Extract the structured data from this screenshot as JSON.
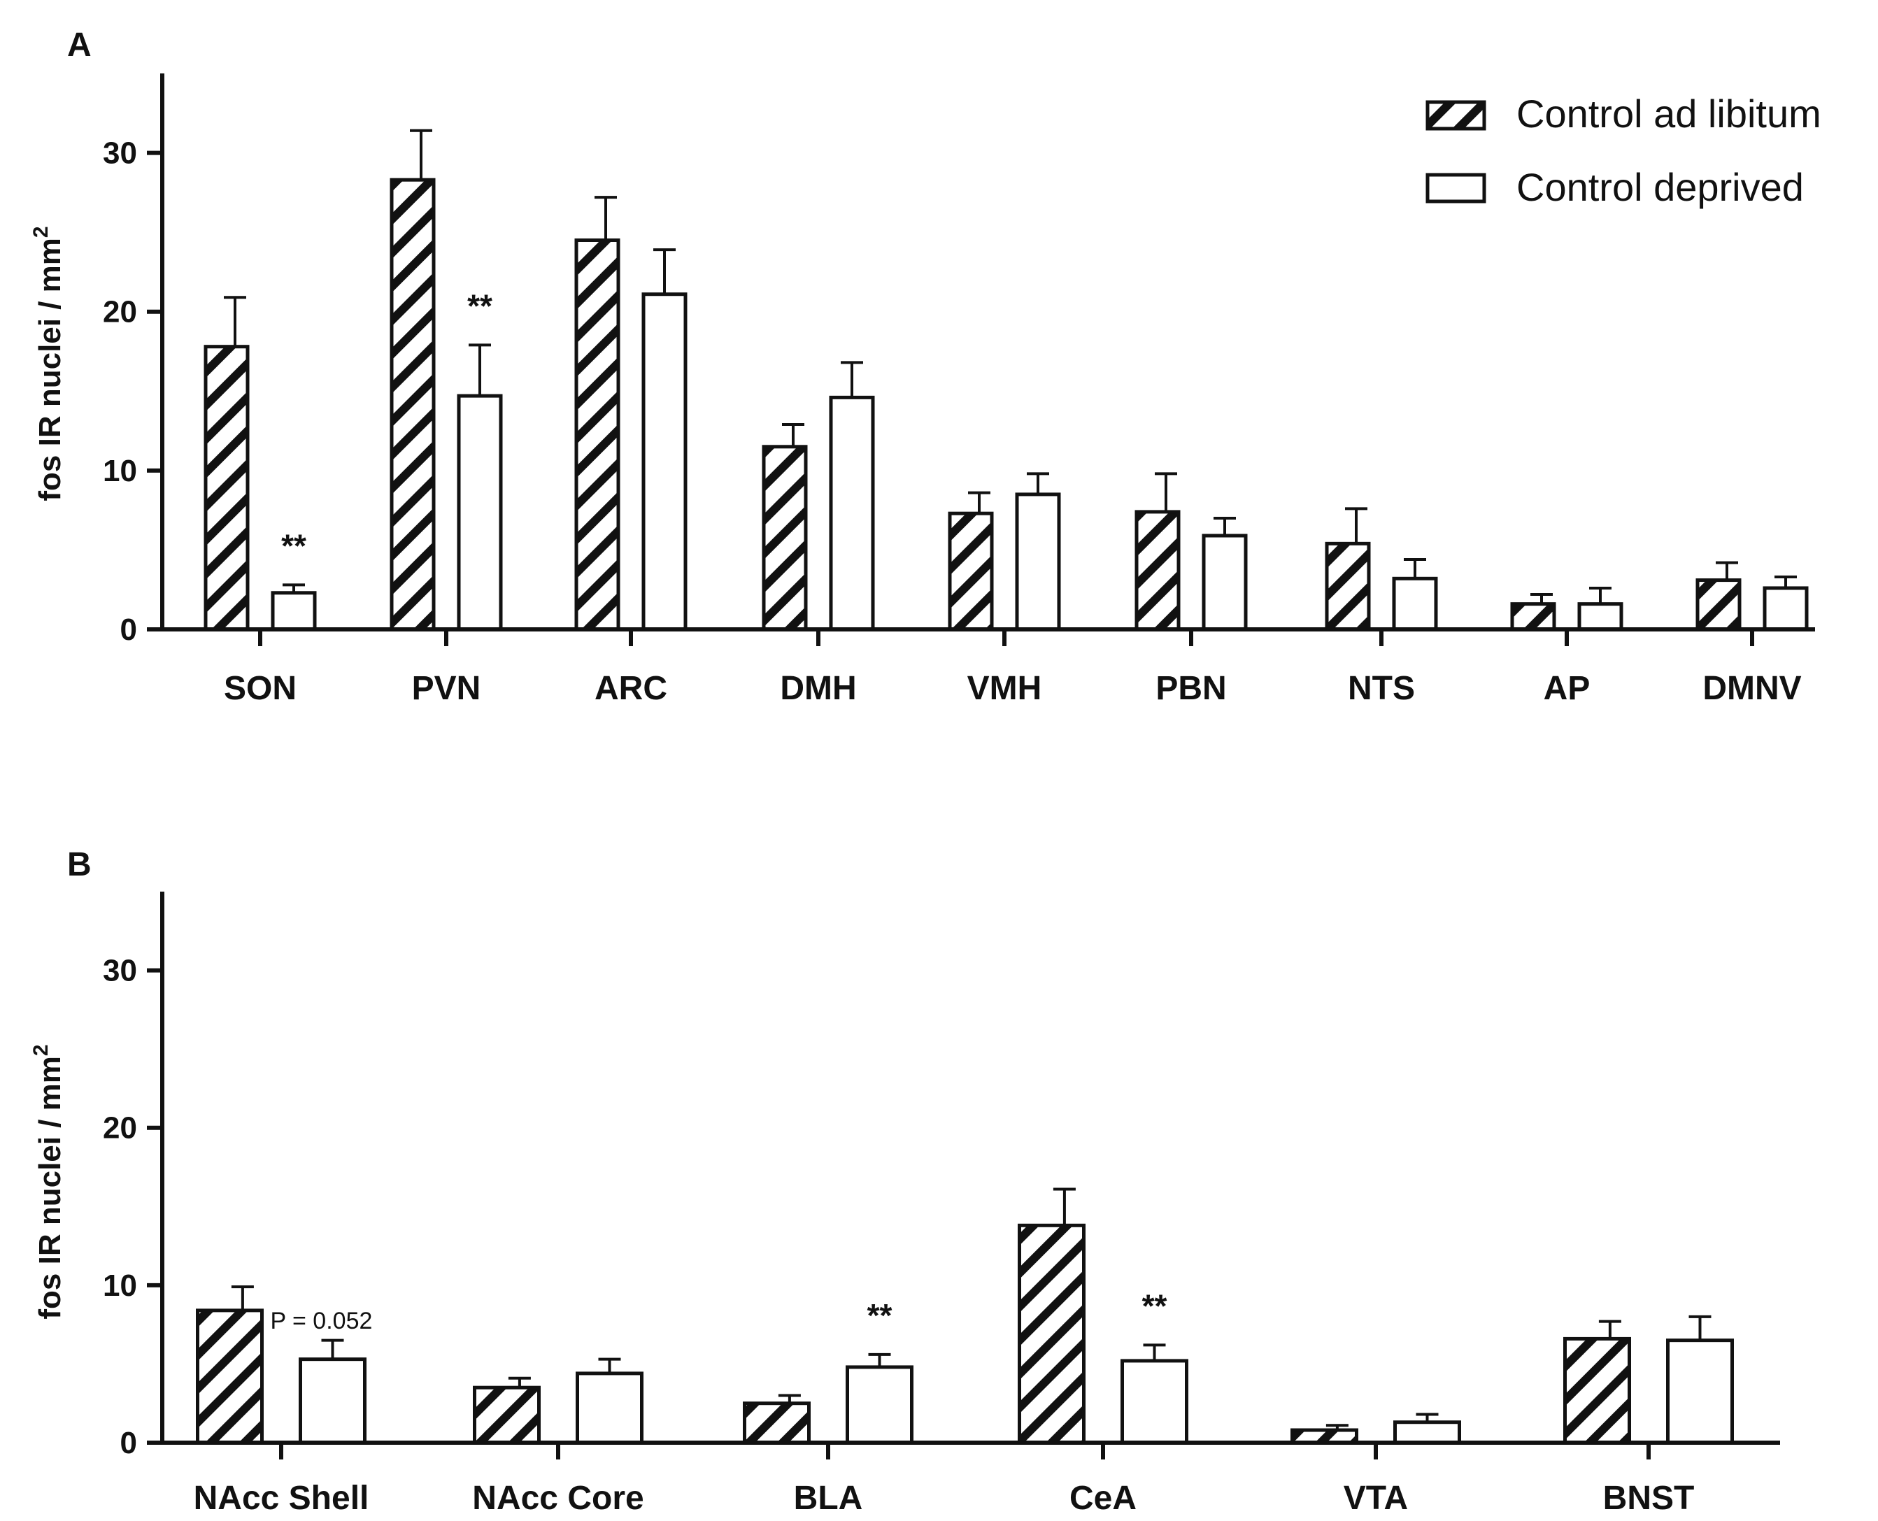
{
  "legend": {
    "items": [
      {
        "label": "Control ad libitum",
        "pattern": "hatched"
      },
      {
        "label": "Control deprived",
        "pattern": "open"
      }
    ]
  },
  "colors": {
    "stroke": "#111111",
    "fill_open": "#ffffff"
  },
  "chart_data": [
    {
      "panel": "A",
      "type": "bar",
      "title": "",
      "xlabel": "",
      "ylabel": "fos IR nuclei / mm",
      "ylabel_superscript": "2",
      "ylim": [
        0,
        35
      ],
      "yticks": [
        0,
        10,
        20,
        30
      ],
      "categories": [
        "SON",
        "PVN",
        "ARC",
        "DMH",
        "VMH",
        "PBN",
        "NTS",
        "AP",
        "DMNV"
      ],
      "series": [
        {
          "name": "Control ad libitum",
          "values": [
            17.8,
            28.3,
            24.5,
            11.5,
            7.3,
            7.4,
            5.4,
            1.6,
            3.1
          ],
          "errors": [
            3.1,
            3.1,
            2.7,
            1.4,
            1.3,
            2.4,
            2.2,
            0.6,
            1.1
          ]
        },
        {
          "name": "Control deprived",
          "values": [
            2.3,
            14.7,
            21.1,
            14.6,
            8.5,
            5.9,
            3.2,
            1.6,
            2.6
          ],
          "errors": [
            0.5,
            3.2,
            2.8,
            2.2,
            1.3,
            1.1,
            1.2,
            1.0,
            0.7
          ]
        }
      ],
      "annotations": [
        {
          "category": "SON",
          "series": 1,
          "text": "**"
        },
        {
          "category": "PVN",
          "series": 1,
          "text": "**"
        }
      ]
    },
    {
      "panel": "B",
      "type": "bar",
      "title": "",
      "xlabel": "",
      "ylabel": "fos IR nuclei / mm",
      "ylabel_superscript": "2",
      "ylim": [
        0,
        35
      ],
      "yticks": [
        0,
        10,
        20,
        30
      ],
      "categories": [
        "NAcc Shell",
        "NAcc Core",
        "BLA",
        "CeA",
        "VTA",
        "BNST"
      ],
      "series": [
        {
          "name": "Control ad libitum",
          "values": [
            8.4,
            3.5,
            2.5,
            13.8,
            0.8,
            6.6
          ],
          "errors": [
            1.5,
            0.6,
            0.5,
            2.3,
            0.3,
            1.1
          ]
        },
        {
          "name": "Control deprived",
          "values": [
            5.3,
            4.4,
            4.8,
            5.2,
            1.3,
            6.5
          ],
          "errors": [
            1.2,
            0.9,
            0.8,
            1.0,
            0.5,
            1.5
          ]
        }
      ],
      "annotations": [
        {
          "category": "NAcc Shell",
          "series": 0,
          "text": "P = 0.052",
          "kind": "note"
        },
        {
          "category": "BLA",
          "series": 1,
          "text": "**"
        },
        {
          "category": "CeA",
          "series": 1,
          "text": "**"
        }
      ]
    }
  ]
}
